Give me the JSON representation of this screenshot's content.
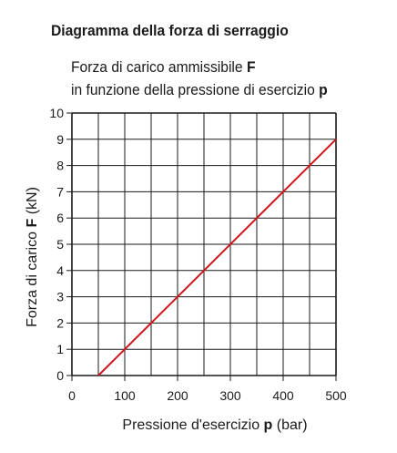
{
  "header": {
    "title": "Diagramma della forza di serraggio",
    "subtitle_line1_text": "Forza di carico ammissibile ",
    "subtitle_line1_bold": "F",
    "subtitle_line2_text": "in funzione della pressione di esercizio ",
    "subtitle_line2_bold": "p"
  },
  "chart_data": {
    "type": "line",
    "xlabel_text": "Pressione d'esercizio ",
    "xlabel_bold": "p",
    "xlabel_unit": " (bar)",
    "ylabel_text": "Forza di carico ",
    "ylabel_bold": "F",
    "ylabel_unit": " (kN)",
    "xlim": [
      0,
      500
    ],
    "ylim": [
      0,
      10
    ],
    "x_ticks": [
      0,
      100,
      200,
      300,
      400,
      500
    ],
    "y_ticks": [
      0,
      1,
      2,
      3,
      4,
      5,
      6,
      7,
      8,
      9,
      10
    ],
    "x_minor_step": 50,
    "y_minor_step": 1,
    "grid": true,
    "series": [
      {
        "color": "#d0141c",
        "x": [
          50,
          500
        ],
        "y": [
          0,
          9
        ]
      }
    ]
  }
}
